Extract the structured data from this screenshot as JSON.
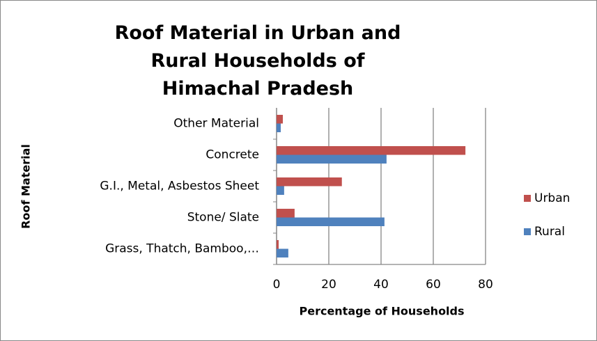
{
  "chart_data": {
    "type": "bar",
    "orientation": "horizontal",
    "title": "Roof Material in Urban and Rural Households of Himachal Pradesh",
    "x_label": "Percentage of Households",
    "y_label": "Roof Material",
    "categories": [
      "Grass, Thatch, Bamboo,…",
      "Stone/ Slate",
      "G.I., Metal, Asbestos Sheet",
      "Concrete",
      "Other Material"
    ],
    "series": [
      {
        "name": "Rural",
        "color": "#4f81bd",
        "values": [
          4.5,
          41.3,
          2.9,
          42.1,
          1.6
        ]
      },
      {
        "name": "Urban",
        "color": "#c0504d",
        "values": [
          0.8,
          6.9,
          25,
          72.3,
          2.4
        ]
      }
    ],
    "xlim": [
      0,
      80
    ],
    "xticks": [
      0,
      20,
      40,
      60,
      80
    ],
    "grid": true,
    "legend": "right"
  }
}
